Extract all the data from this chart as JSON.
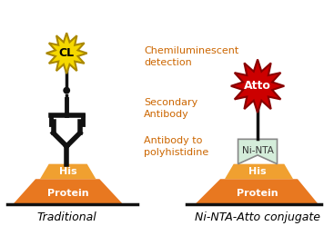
{
  "bg_color": "#ffffff",
  "title_fontsize": 9,
  "label_fontsize": 8,
  "annotation_fontsize": 8,
  "annotation_color": "#cc6600",
  "left_label": "Traditional",
  "right_label": "Ni-NTA-Atto conjugate",
  "cl_text": "CL",
  "atto_text": "Atto",
  "ninta_text": "Ni-NTA",
  "his_text": "His",
  "protein_text": "Protein",
  "annot1": "Chemiluminescent\ndetection",
  "annot2": "Secondary\nAntibody",
  "annot3": "Antibody to\npolyhistidine",
  "star_color_yellow": "#f5d800",
  "star_color_red": "#cc0000",
  "star_outline": "#aa8800",
  "star_outline_red": "#880000",
  "antibody_color": "#111111",
  "ninta_color_fill": "#d4edda",
  "ninta_color_edge": "#888888",
  "his_color": "#f0a030",
  "protein_color": "#e87820",
  "ground_color": "#111111"
}
